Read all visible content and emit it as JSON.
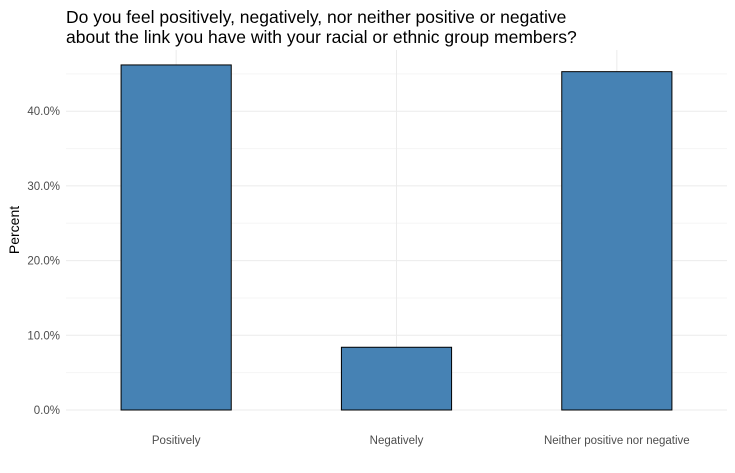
{
  "chart_data": {
    "type": "bar",
    "title_lines": [
      "Do you feel positively, negatively, nor neither positive or negative",
      "about the link you have with your racial or ethnic group members?"
    ],
    "xlabel": "",
    "ylabel": "Percent",
    "categories": [
      "Positively",
      "Negatively",
      "Neither positive nor negative"
    ],
    "values": [
      46.2,
      8.4,
      45.3
    ],
    "ylim": [
      0,
      48.2
    ],
    "yticks": [
      0,
      10,
      20,
      30,
      40
    ],
    "ytick_labels": [
      "0.0%",
      "10.0%",
      "20.0%",
      "30.0%",
      "40.0%"
    ],
    "grid": true,
    "legend": "none",
    "colors": {
      "bar_fill": "#4682b4",
      "bar_stroke": "#000000",
      "grid_major": "#ebebeb",
      "grid_minor": "#f5f5f5",
      "axis_text": "#4d4d4d",
      "axis_title": "#000000",
      "background": "#ffffff"
    }
  }
}
